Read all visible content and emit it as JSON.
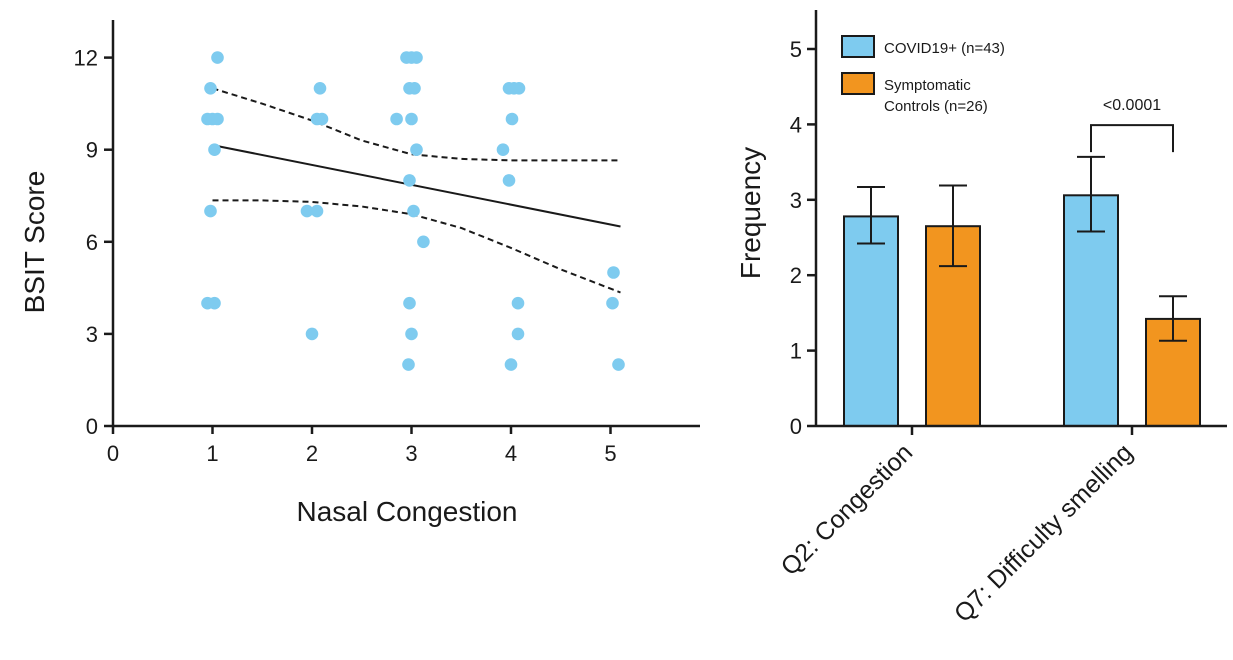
{
  "chart_data": [
    {
      "type": "scatter",
      "xlabel": "Nasal Congestion",
      "ylabel": "BSIT Score",
      "xlim": [
        0,
        5.8
      ],
      "ylim": [
        0,
        12
      ],
      "xticks": [
        0,
        1,
        2,
        3,
        4,
        5
      ],
      "yticks": [
        0,
        3,
        6,
        9,
        12
      ],
      "point_color": "#7ecbef",
      "points": [
        {
          "x": 1.05,
          "y": 12
        },
        {
          "x": 0.98,
          "y": 11
        },
        {
          "x": 0.95,
          "y": 10
        },
        {
          "x": 1.0,
          "y": 10
        },
        {
          "x": 1.05,
          "y": 10
        },
        {
          "x": 1.02,
          "y": 9
        },
        {
          "x": 0.98,
          "y": 7
        },
        {
          "x": 0.95,
          "y": 4
        },
        {
          "x": 1.02,
          "y": 4
        },
        {
          "x": 2.08,
          "y": 11
        },
        {
          "x": 2.05,
          "y": 10
        },
        {
          "x": 2.1,
          "y": 10
        },
        {
          "x": 1.95,
          "y": 7
        },
        {
          "x": 2.05,
          "y": 7
        },
        {
          "x": 2.0,
          "y": 3
        },
        {
          "x": 2.95,
          "y": 12
        },
        {
          "x": 3.0,
          "y": 12
        },
        {
          "x": 3.05,
          "y": 12
        },
        {
          "x": 2.98,
          "y": 11
        },
        {
          "x": 3.03,
          "y": 11
        },
        {
          "x": 2.85,
          "y": 10
        },
        {
          "x": 3.0,
          "y": 10
        },
        {
          "x": 3.05,
          "y": 9
        },
        {
          "x": 2.98,
          "y": 8
        },
        {
          "x": 3.02,
          "y": 7
        },
        {
          "x": 3.12,
          "y": 6
        },
        {
          "x": 2.98,
          "y": 4
        },
        {
          "x": 3.0,
          "y": 3
        },
        {
          "x": 2.97,
          "y": 2
        },
        {
          "x": 3.98,
          "y": 11
        },
        {
          "x": 4.03,
          "y": 11
        },
        {
          "x": 4.08,
          "y": 11
        },
        {
          "x": 4.01,
          "y": 10
        },
        {
          "x": 3.92,
          "y": 9
        },
        {
          "x": 3.98,
          "y": 8
        },
        {
          "x": 4.07,
          "y": 4
        },
        {
          "x": 4.07,
          "y": 3
        },
        {
          "x": 4.0,
          "y": 2
        },
        {
          "x": 5.03,
          "y": 5
        },
        {
          "x": 5.02,
          "y": 4
        },
        {
          "x": 5.08,
          "y": 2
        }
      ],
      "fit_line": {
        "x": [
          1,
          5.1
        ],
        "y": [
          9.15,
          6.5
        ]
      },
      "ci_upper": {
        "x": [
          1,
          1.5,
          2,
          2.5,
          3,
          3.5,
          4,
          4.5,
          5.1
        ],
        "y": [
          11.0,
          10.5,
          9.95,
          9.3,
          8.85,
          8.7,
          8.65,
          8.65,
          8.65
        ]
      },
      "ci_lower": {
        "x": [
          1,
          1.5,
          2,
          2.5,
          3,
          3.5,
          4,
          4.5,
          5.1
        ],
        "y": [
          7.35,
          7.35,
          7.3,
          7.15,
          6.9,
          6.45,
          5.8,
          5.1,
          4.35
        ]
      }
    },
    {
      "type": "bar",
      "ylabel": "Frequency",
      "ylim": [
        0,
        5.5
      ],
      "yticks": [
        0,
        1,
        2,
        3,
        4,
        5
      ],
      "categories": [
        "Q2: Congestion",
        "Q7: Difficulty smelling"
      ],
      "series": [
        {
          "name": "COVID19+ (n=43)",
          "legend_lines": [
            "COVID19+ (n=43)"
          ],
          "color": "#7ecbef",
          "values": [
            2.78,
            3.06
          ],
          "error_low": [
            2.42,
            2.58
          ],
          "error_high": [
            3.17,
            3.57
          ]
        },
        {
          "name": "Symptomatic Controls (n=26)",
          "legend_lines": [
            "Symptomatic",
            "Controls (n=26)"
          ],
          "color": "#f2951f",
          "values": [
            2.65,
            1.42
          ],
          "error_low": [
            2.12,
            1.13
          ],
          "error_high": [
            3.19,
            1.72
          ]
        }
      ],
      "legend_position": "top-left",
      "annotations": [
        {
          "text": "<0.0001",
          "category_index": 1,
          "y": 3.99
        }
      ]
    }
  ]
}
